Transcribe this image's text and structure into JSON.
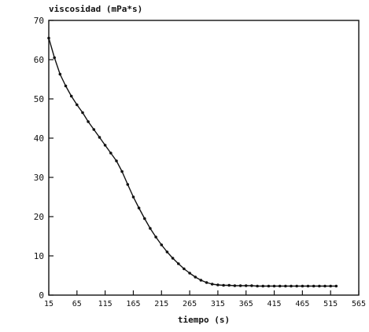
{
  "chart_data": {
    "type": "line",
    "title": "",
    "ylabel": "viscosidad (mPa*s)",
    "xlabel": "tiempo (s)",
    "xlim": [
      15,
      565
    ],
    "ylim": [
      0,
      70
    ],
    "x_ticks": [
      15,
      65,
      115,
      165,
      215,
      265,
      315,
      365,
      415,
      465,
      515,
      565
    ],
    "x_tick_labels": [
      "15",
      "65",
      "115",
      "165",
      "215",
      "265",
      "315",
      "365",
      "415",
      "465",
      "515",
      "565"
    ],
    "y_ticks": [
      0,
      10,
      20,
      30,
      40,
      50,
      60,
      70
    ],
    "y_tick_labels": [
      "0",
      "10",
      "20",
      "30",
      "40",
      "50",
      "60",
      "70"
    ],
    "grid": false,
    "legend": "none",
    "line_color": "#111111",
    "marker_color": "#111111",
    "series": [
      {
        "x": [
          15,
          25,
          35,
          45,
          55,
          65,
          75,
          85,
          95,
          105,
          115,
          125,
          135,
          145,
          155,
          165,
          175,
          185,
          195,
          205,
          215,
          225,
          235,
          245,
          255,
          265,
          275,
          285,
          295,
          305,
          315,
          325,
          335,
          345,
          355,
          365,
          375,
          385,
          395,
          405,
          415,
          425,
          435,
          445,
          455,
          465,
          475,
          485,
          495,
          505,
          515,
          525
        ],
        "y": [
          65.5,
          60.5,
          56.3,
          53.3,
          50.7,
          48.5,
          46.5,
          44.2,
          42.2,
          40.2,
          38.2,
          36.2,
          34.2,
          31.5,
          28.2,
          25.0,
          22.2,
          19.5,
          17.0,
          14.8,
          12.8,
          11.0,
          9.4,
          8.0,
          6.7,
          5.6,
          4.6,
          3.8,
          3.2,
          2.8,
          2.6,
          2.5,
          2.5,
          2.4,
          2.4,
          2.4,
          2.4,
          2.3,
          2.3,
          2.3,
          2.3,
          2.3,
          2.3,
          2.3,
          2.3,
          2.3,
          2.3,
          2.3,
          2.3,
          2.3,
          2.3,
          2.3
        ]
      }
    ]
  }
}
